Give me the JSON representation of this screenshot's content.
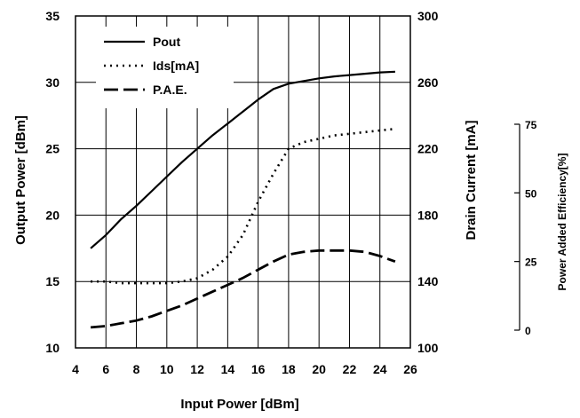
{
  "chart_data": {
    "type": "line",
    "title": "",
    "xlabel": "Input Power [dBm]",
    "ylabel": "Output Power [dBm]",
    "y2label": "Drain Current [mA]",
    "y3label": "Power Added Efficiency[%]",
    "xlim": [
      4,
      26
    ],
    "ylim": [
      10,
      35
    ],
    "y2lim": [
      100,
      300
    ],
    "y3lim": [
      0,
      75
    ],
    "x_ticks": [
      4,
      6,
      8,
      10,
      12,
      14,
      16,
      18,
      20,
      22,
      24,
      26
    ],
    "y_ticks": [
      10,
      15,
      20,
      25,
      30,
      35
    ],
    "y2_ticks": [
      100,
      140,
      180,
      220,
      260,
      300
    ],
    "y3_ticks": [
      0,
      25,
      50,
      75
    ],
    "grid": true,
    "legend_position": "top-left",
    "series": [
      {
        "name": "Pout",
        "axis": "left",
        "style": "solid",
        "x": [
          5,
          6,
          7,
          8,
          9,
          10,
          11,
          12,
          13,
          14,
          15,
          16,
          17,
          18,
          19,
          20,
          21,
          22,
          23,
          24,
          25
        ],
        "y": [
          17.5,
          18.5,
          19.7,
          20.7,
          21.8,
          22.9,
          24.0,
          25.0,
          26.0,
          26.9,
          27.8,
          28.7,
          29.5,
          29.9,
          30.1,
          30.3,
          30.45,
          30.55,
          30.65,
          30.75,
          30.8
        ]
      },
      {
        "name": "Ids[mA]",
        "axis": "right",
        "style": "dotted",
        "x": [
          5,
          6,
          7,
          8,
          9,
          10,
          11,
          12,
          13,
          14,
          15,
          16,
          17,
          18,
          19,
          20,
          21,
          22,
          23,
          24,
          25
        ],
        "y": [
          140,
          140,
          139,
          139,
          139,
          139,
          140,
          142,
          147,
          155,
          168,
          188,
          205,
          220,
          224,
          226,
          228,
          229,
          230,
          231,
          232
        ]
      },
      {
        "name": "P.A.E.",
        "axis": "far-right",
        "style": "dashed",
        "x": [
          5,
          6,
          7,
          8,
          9,
          10,
          11,
          12,
          13,
          14,
          15,
          16,
          17,
          18,
          19,
          20,
          21,
          22,
          23,
          24,
          25
        ],
        "y": [
          1,
          1.5,
          2.5,
          3.5,
          5,
          7,
          9,
          11.5,
          14,
          16.5,
          19,
          22,
          25,
          27.5,
          28.5,
          29,
          29,
          29,
          28.5,
          27,
          25
        ]
      }
    ]
  }
}
